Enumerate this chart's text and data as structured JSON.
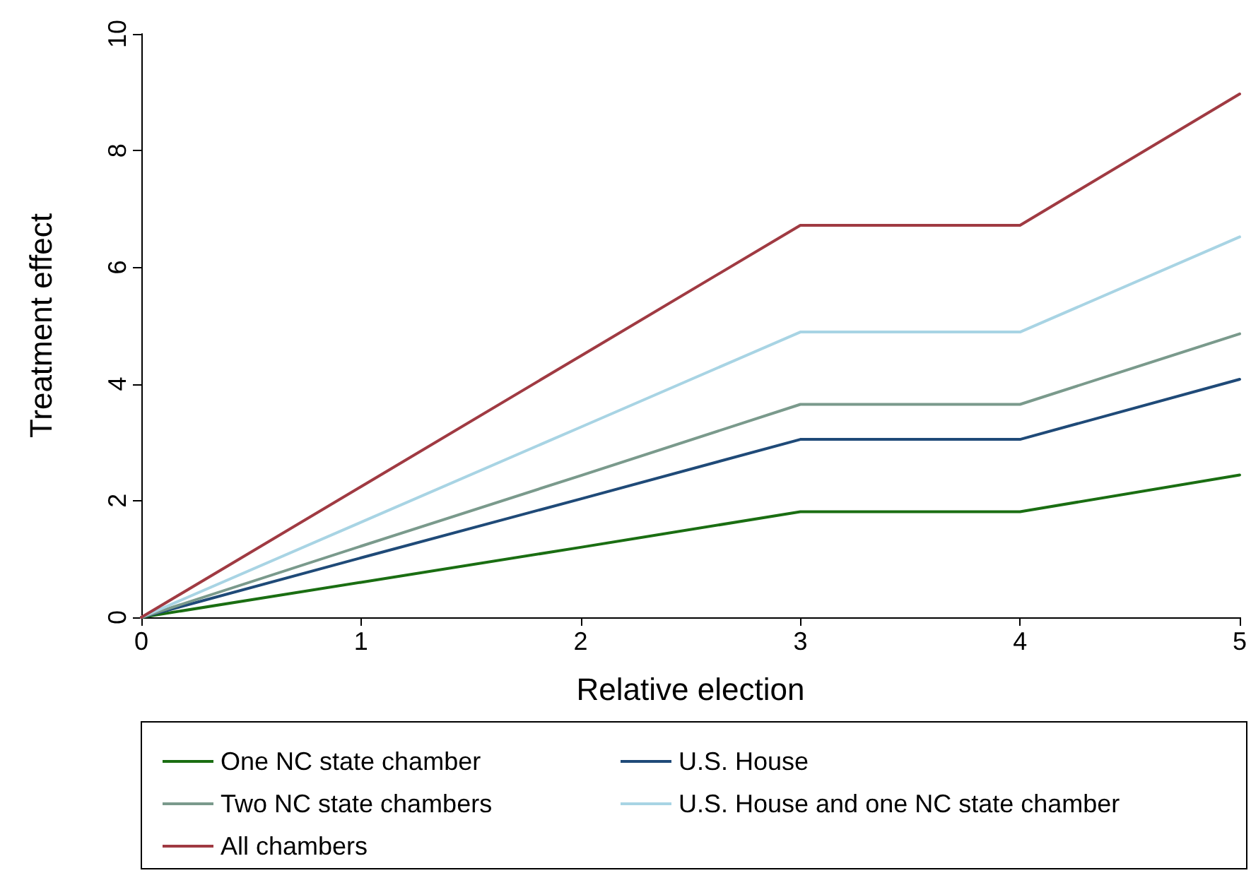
{
  "chart_data": {
    "type": "line",
    "xlabel": "Relative election",
    "ylabel": "Treatment effect",
    "x": [
      0,
      1,
      2,
      3,
      4,
      5
    ],
    "series": [
      {
        "name": "One NC state chamber",
        "color": "#1a6e12",
        "values": [
          0,
          0.6,
          1.2,
          1.81,
          1.81,
          2.44
        ]
      },
      {
        "name": "U.S. House",
        "color": "#1f4a78",
        "values": [
          0,
          1.02,
          2.03,
          3.05,
          3.05,
          4.08
        ]
      },
      {
        "name": "Two NC state chambers",
        "color": "#7a9a8c",
        "values": [
          0,
          1.22,
          2.43,
          3.65,
          3.65,
          4.86
        ]
      },
      {
        "name": "U.S. House and one NC state chamber",
        "color": "#a8d4e4",
        "values": [
          0,
          1.63,
          3.26,
          4.89,
          4.89,
          6.52
        ]
      },
      {
        "name": "All chambers",
        "color": "#a03a42",
        "values": [
          0,
          2.24,
          4.48,
          6.72,
          6.72,
          8.97
        ]
      }
    ],
    "xlim": [
      0,
      5
    ],
    "xticks": [
      0,
      1,
      2,
      3,
      4,
      5
    ],
    "ylim": [
      0,
      10
    ],
    "yticks": [
      0,
      2,
      4,
      6,
      8,
      10
    ],
    "grid": false,
    "legend": "bottom",
    "marker": "none",
    "line_style": "solid"
  }
}
